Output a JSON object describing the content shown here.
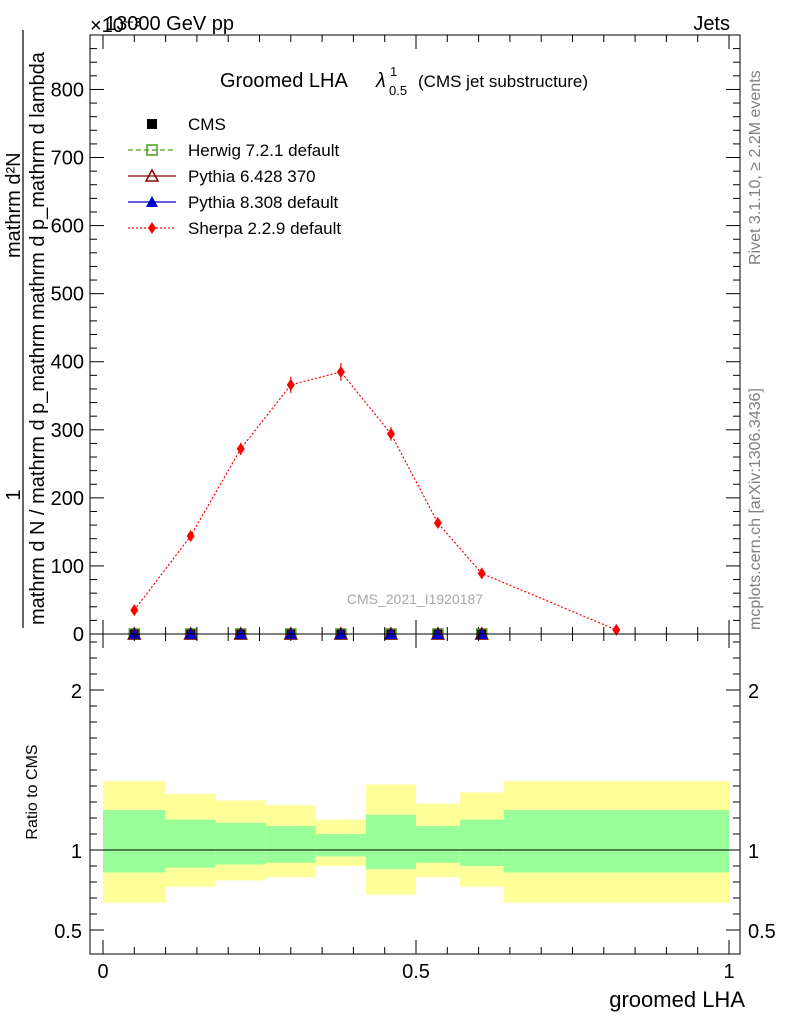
{
  "header": {
    "left": "13000 GeV pp",
    "right": "Jets",
    "exponent": "×10⁻³"
  },
  "side_labels": {
    "rivet": "Rivet 3.1.10, ≥ 2.2M events",
    "mcplots": "mcplots.cern.ch [arXiv:1306.3436]"
  },
  "watermark": "CMS_2021_I1920187",
  "chart_data": [
    {
      "type": "line",
      "title": "Groomed LHA",
      "title_symbol": "λ",
      "title_sup": "1",
      "title_sub": "0.5",
      "title_note": "(CMS jet substructure)",
      "ylabel_numerator": "mathrm d²N",
      "ylabel_denominator": "mathrm d p_mathrm d lambda",
      "ylabel_prefix_num": "1",
      "ylabel_prefix_den": "mathrm d N / mathrm d p_mathrm",
      "xlim": [
        0,
        1
      ],
      "ylim": [
        0,
        880
      ],
      "yticks": [
        0,
        100,
        200,
        300,
        400,
        500,
        600,
        700,
        800
      ],
      "y_multiplier": "1e-3",
      "legend_position": "top-left",
      "series": [
        {
          "name": "CMS",
          "color": "#000000",
          "marker": "square-filled",
          "x": [
            0.05,
            0.14,
            0.22,
            0.3,
            0.38,
            0.46,
            0.535,
            0.605
          ],
          "y": [
            0,
            0,
            0,
            0,
            0,
            0,
            0,
            0
          ]
        },
        {
          "name": "Herwig 7.2.1 default",
          "color": "#4d9a1a",
          "marker": "square-open",
          "line": "dashed",
          "x": [
            0.05,
            0.14,
            0.22,
            0.3,
            0.38,
            0.46,
            0.535,
            0.605
          ],
          "y": [
            0,
            0,
            0,
            0,
            0,
            0,
            0,
            0
          ]
        },
        {
          "name": "Pythia 6.428 370",
          "color": "#8b0000",
          "marker": "triangle-open",
          "line": "solid",
          "x": [
            0.05,
            0.14,
            0.22,
            0.3,
            0.38,
            0.46,
            0.535,
            0.605
          ],
          "y": [
            0,
            0,
            0,
            0,
            0,
            0,
            0,
            0
          ]
        },
        {
          "name": "Pythia 8.308 default",
          "color": "#0000cc",
          "marker": "triangle-filled",
          "line": "solid",
          "x": [
            0.05,
            0.14,
            0.22,
            0.3,
            0.38,
            0.46,
            0.535,
            0.605
          ],
          "y": [
            0,
            0,
            0,
            0,
            0,
            0,
            0,
            0
          ]
        },
        {
          "name": "Sherpa 2.2.9 default",
          "color": "#ff0000",
          "marker": "diamond",
          "line": "dotted",
          "x": [
            0.05,
            0.14,
            0.22,
            0.3,
            0.38,
            0.46,
            0.535,
            0.605,
            0.82
          ],
          "y": [
            35,
            144,
            272,
            366,
            385,
            294,
            163,
            89,
            6
          ],
          "err": [
            4,
            6,
            9,
            12,
            13,
            10,
            7,
            4,
            1
          ]
        }
      ]
    },
    {
      "type": "area",
      "ylabel": "Ratio to CMS",
      "xlabel": "groomed LHA",
      "xlim": [
        0,
        1
      ],
      "ylim": [
        0.35,
        2.35
      ],
      "yticks": [
        0.5,
        1,
        2
      ],
      "xticks": [
        0,
        0.5,
        1
      ],
      "reference": 1,
      "bins": [
        {
          "lo": 0.0,
          "hi": 0.1,
          "inner": [
            0.86,
            1.25
          ],
          "outer": [
            0.67,
            1.43
          ]
        },
        {
          "lo": 0.1,
          "hi": 0.18,
          "inner": [
            0.89,
            1.19
          ],
          "outer": [
            0.77,
            1.35
          ]
        },
        {
          "lo": 0.18,
          "hi": 0.26,
          "inner": [
            0.91,
            1.17
          ],
          "outer": [
            0.81,
            1.31
          ]
        },
        {
          "lo": 0.26,
          "hi": 0.34,
          "inner": [
            0.92,
            1.15
          ],
          "outer": [
            0.83,
            1.28
          ]
        },
        {
          "lo": 0.34,
          "hi": 0.42,
          "inner": [
            0.96,
            1.1
          ],
          "outer": [
            0.9,
            1.19
          ]
        },
        {
          "lo": 0.42,
          "hi": 0.5,
          "inner": [
            0.88,
            1.22
          ],
          "outer": [
            0.72,
            1.41
          ]
        },
        {
          "lo": 0.5,
          "hi": 0.57,
          "inner": [
            0.92,
            1.15
          ],
          "outer": [
            0.83,
            1.29
          ]
        },
        {
          "lo": 0.57,
          "hi": 0.64,
          "inner": [
            0.9,
            1.19
          ],
          "outer": [
            0.77,
            1.36
          ]
        },
        {
          "lo": 0.64,
          "hi": 1.0,
          "inner": [
            0.86,
            1.25
          ],
          "outer": [
            0.67,
            1.43
          ]
        }
      ],
      "colors": {
        "inner": "#99ff99",
        "outer": "#ffff99"
      }
    }
  ]
}
